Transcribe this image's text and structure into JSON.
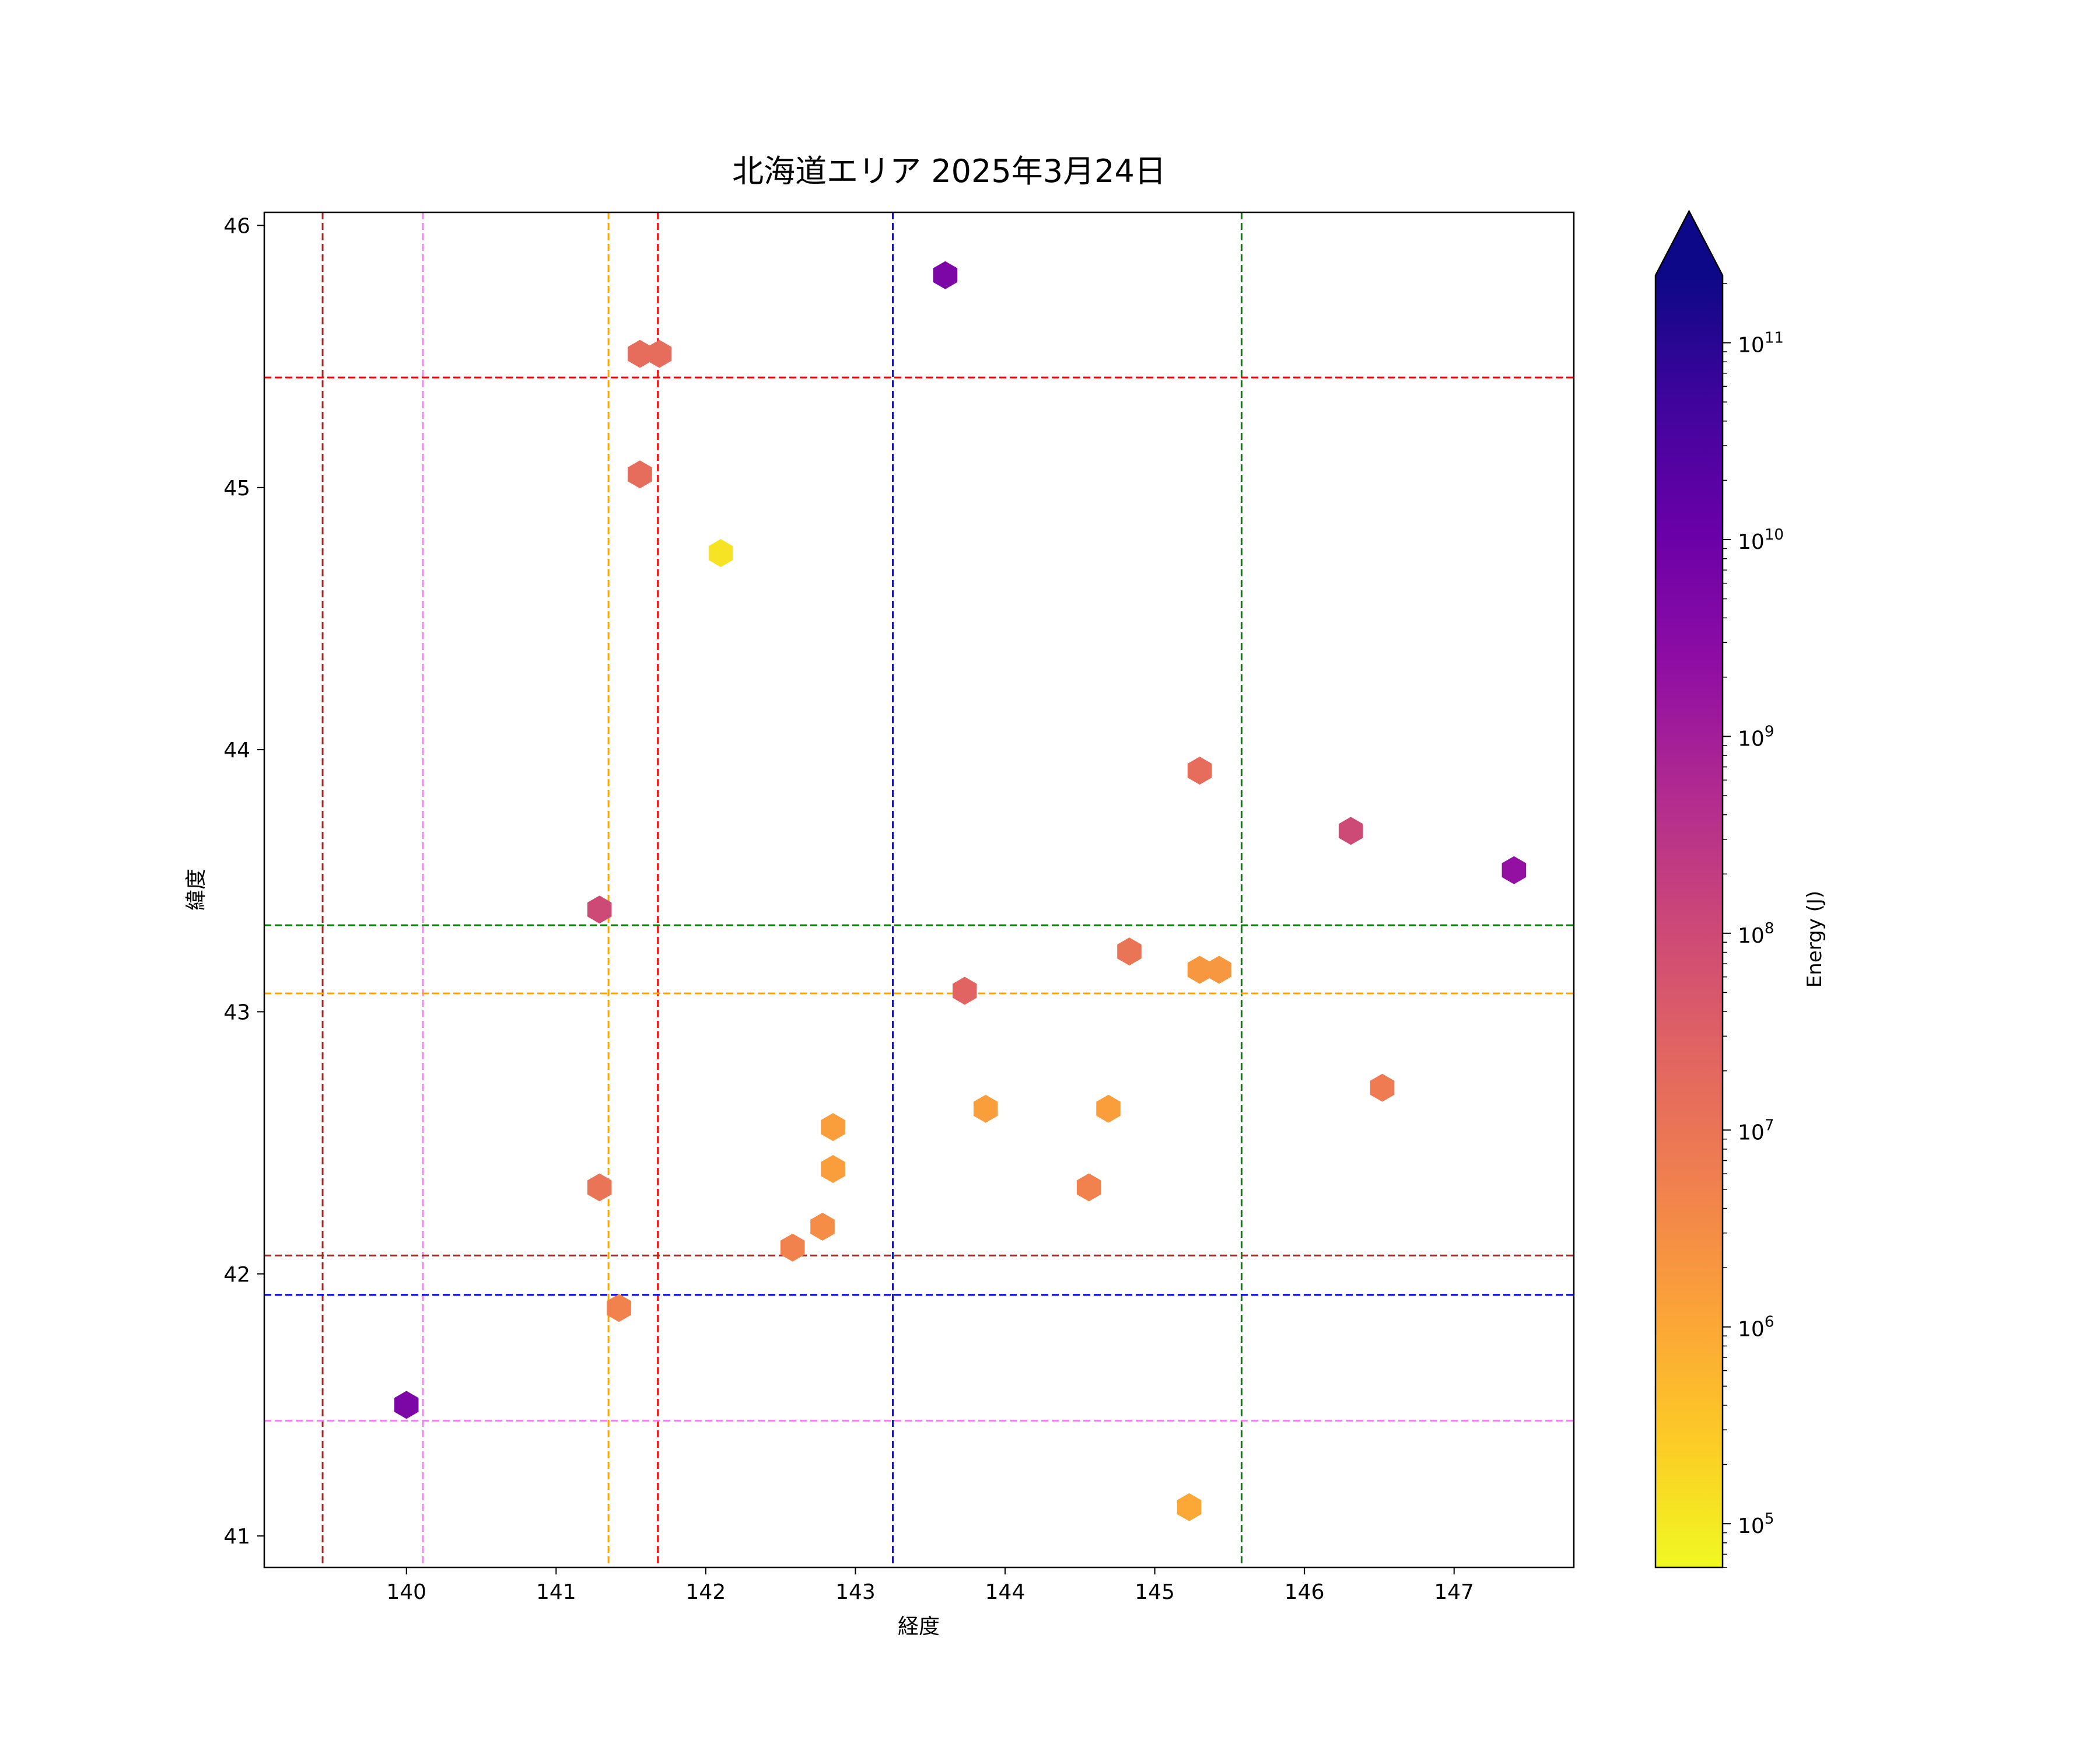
{
  "chart_data": {
    "type": "scatter",
    "marker": "hexagon",
    "title": "北海道エリア 2025年3月24日",
    "xlabel": "経度",
    "ylabel": "緯度",
    "xlim": [
      139.05,
      147.8
    ],
    "ylim": [
      40.88,
      46.05
    ],
    "xticks": [
      140,
      141,
      142,
      143,
      144,
      145,
      146,
      147
    ],
    "yticks": [
      41,
      42,
      43,
      44,
      45,
      46
    ],
    "colorbar": {
      "label": "Energy (J)",
      "scale": "log",
      "colormap": "plasma",
      "range": [
        60000,
        220000000000
      ],
      "extend": "max",
      "ticks": [
        {
          "value": 100000,
          "base": "10",
          "exp": "5"
        },
        {
          "value": 1000000,
          "base": "10",
          "exp": "6"
        },
        {
          "value": 10000000,
          "base": "10",
          "exp": "7"
        },
        {
          "value": 100000000,
          "base": "10",
          "exp": "8"
        },
        {
          "value": 1000000000,
          "base": "10",
          "exp": "9"
        },
        {
          "value": 10000000000,
          "base": "10",
          "exp": "10"
        },
        {
          "value": 100000000000,
          "base": "10",
          "exp": "11"
        }
      ]
    },
    "reference_lines": [
      {
        "orientation": "vertical",
        "value": 139.44,
        "color": "#a52a2a"
      },
      {
        "orientation": "vertical",
        "value": 140.11,
        "color": "#ee82ee"
      },
      {
        "orientation": "vertical",
        "value": 141.35,
        "color": "#ffa500"
      },
      {
        "orientation": "vertical",
        "value": 141.68,
        "color": "#ff0000"
      },
      {
        "orientation": "vertical",
        "value": 143.25,
        "color": "#0000ff"
      },
      {
        "orientation": "vertical",
        "value": 145.58,
        "color": "#008000"
      },
      {
        "orientation": "horizontal",
        "value": 45.42,
        "color": "#ff0000"
      },
      {
        "orientation": "horizontal",
        "value": 43.33,
        "color": "#008000"
      },
      {
        "orientation": "horizontal",
        "value": 43.07,
        "color": "#ffa500"
      },
      {
        "orientation": "horizontal",
        "value": 42.07,
        "color": "#a52a2a"
      },
      {
        "orientation": "horizontal",
        "value": 41.92,
        "color": "#0000ff"
      },
      {
        "orientation": "horizontal",
        "value": 41.44,
        "color": "#ee82ee"
      }
    ],
    "points": [
      {
        "lon": 143.6,
        "lat": 45.81,
        "energy": 5000000000
      },
      {
        "lon": 141.56,
        "lat": 45.51,
        "energy": 15000000
      },
      {
        "lon": 141.69,
        "lat": 45.51,
        "energy": 15000000
      },
      {
        "lon": 141.56,
        "lat": 45.05,
        "energy": 15000000
      },
      {
        "lon": 142.1,
        "lat": 44.75,
        "energy": 120000
      },
      {
        "lon": 145.3,
        "lat": 43.92,
        "energy": 15000000
      },
      {
        "lon": 146.31,
        "lat": 43.69,
        "energy": 100000000
      },
      {
        "lon": 147.4,
        "lat": 43.54,
        "energy": 2000000000
      },
      {
        "lon": 141.29,
        "lat": 43.39,
        "energy": 100000000
      },
      {
        "lon": 144.83,
        "lat": 43.23,
        "energy": 10000000
      },
      {
        "lon": 145.3,
        "lat": 43.16,
        "energy": 2000000
      },
      {
        "lon": 145.43,
        "lat": 43.16,
        "energy": 2000000
      },
      {
        "lon": 143.73,
        "lat": 43.08,
        "energy": 25000000
      },
      {
        "lon": 146.52,
        "lat": 42.71,
        "energy": 7000000
      },
      {
        "lon": 143.87,
        "lat": 42.63,
        "energy": 1500000
      },
      {
        "lon": 144.69,
        "lat": 42.63,
        "energy": 1500000
      },
      {
        "lon": 142.85,
        "lat": 42.56,
        "energy": 1500000
      },
      {
        "lon": 142.85,
        "lat": 42.4,
        "energy": 1500000
      },
      {
        "lon": 141.29,
        "lat": 42.33,
        "energy": 10000000
      },
      {
        "lon": 144.56,
        "lat": 42.33,
        "energy": 5000000
      },
      {
        "lon": 142.78,
        "lat": 42.18,
        "energy": 3000000
      },
      {
        "lon": 142.58,
        "lat": 42.1,
        "energy": 5000000
      },
      {
        "lon": 141.42,
        "lat": 41.87,
        "energy": 5000000
      },
      {
        "lon": 140.0,
        "lat": 41.5,
        "energy": 5000000000
      },
      {
        "lon": 145.23,
        "lat": 41.11,
        "energy": 1000000
      }
    ]
  }
}
